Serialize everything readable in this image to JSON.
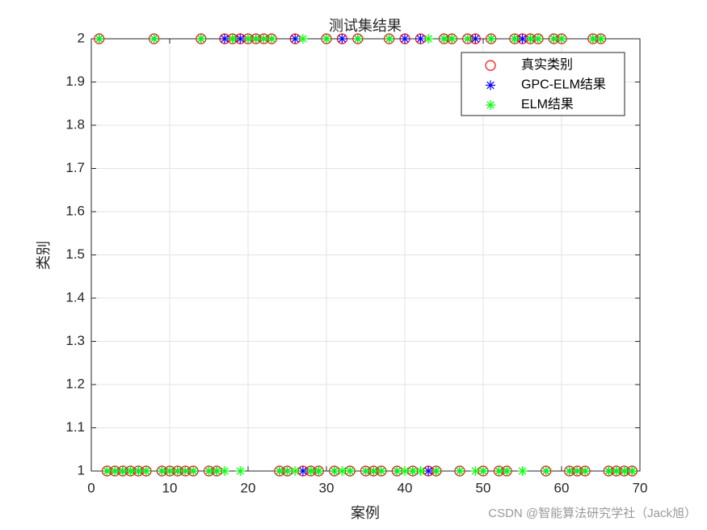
{
  "chart_data": {
    "type": "scatter",
    "title": "测试集结果",
    "x_label": "案例",
    "y_label": "类别",
    "x": [
      1,
      2,
      3,
      4,
      5,
      6,
      7,
      8,
      9,
      10,
      11,
      12,
      13,
      14,
      15,
      16,
      17,
      18,
      19,
      20,
      21,
      22,
      23,
      24,
      25,
      26,
      27,
      28,
      29,
      30,
      31,
      32,
      33,
      34,
      35,
      36,
      37,
      38,
      39,
      40,
      41,
      42,
      43,
      44,
      45,
      46,
      47,
      48,
      49,
      50,
      51,
      52,
      53,
      54,
      55,
      56,
      57,
      58,
      59,
      60,
      61,
      62,
      63,
      64,
      65,
      66,
      67,
      68,
      69
    ],
    "series": [
      {
        "name": "真实类别",
        "color": "#ff0000",
        "marker": "circle",
        "values": [
          2,
          1,
          1,
          1,
          1,
          1,
          1,
          2,
          1,
          1,
          1,
          1,
          1,
          2,
          1,
          1,
          2,
          2,
          2,
          2,
          2,
          2,
          2,
          1,
          1,
          2,
          1,
          1,
          1,
          2,
          1,
          2,
          1,
          2,
          1,
          1,
          1,
          2,
          1,
          2,
          1,
          2,
          1,
          1,
          2,
          2,
          1,
          2,
          2,
          1,
          2,
          1,
          1,
          2,
          2,
          2,
          2,
          1,
          2,
          2,
          1,
          1,
          1,
          2,
          2,
          1,
          1,
          1,
          1
        ]
      },
      {
        "name": "GPC-ELM结果",
        "color": "#0000ff",
        "marker": "asterisk",
        "values": [
          2,
          1,
          1,
          1,
          1,
          1,
          1,
          2,
          1,
          1,
          1,
          1,
          1,
          2,
          1,
          1,
          2,
          2,
          2,
          2,
          2,
          2,
          2,
          1,
          1,
          2,
          1,
          1,
          1,
          2,
          1,
          2,
          1,
          2,
          1,
          1,
          1,
          2,
          1,
          2,
          1,
          2,
          1,
          1,
          2,
          2,
          1,
          2,
          2,
          1,
          2,
          1,
          1,
          2,
          2,
          2,
          2,
          1,
          2,
          2,
          1,
          1,
          1,
          2,
          2,
          1,
          1,
          1,
          1
        ]
      },
      {
        "name": "ELM结果",
        "color": "#00ff00",
        "marker": "asterisk",
        "values": [
          2,
          1,
          1,
          1,
          1,
          1,
          1,
          2,
          1,
          1,
          1,
          1,
          1,
          2,
          1,
          1,
          1,
          2,
          1,
          2,
          2,
          2,
          2,
          1,
          1,
          1,
          2,
          1,
          1,
          2,
          1,
          1,
          1,
          2,
          1,
          1,
          1,
          2,
          1,
          1,
          1,
          1,
          2,
          1,
          2,
          2,
          1,
          2,
          1,
          1,
          2,
          1,
          1,
          2,
          1,
          2,
          2,
          1,
          2,
          2,
          1,
          1,
          1,
          2,
          2,
          1,
          1,
          1,
          1
        ]
      }
    ],
    "xlim": [
      0,
      70
    ],
    "ylim": [
      1,
      2
    ],
    "xticks": [
      0,
      10,
      20,
      30,
      40,
      50,
      60,
      70
    ],
    "yticks": [
      1,
      1.1,
      1.2,
      1.3,
      1.4,
      1.5,
      1.6,
      1.7,
      1.8,
      1.9,
      2
    ],
    "grid": true,
    "legend": "northeast",
    "watermark": "CSDN @智能算法研究学社（Jack旭）"
  }
}
